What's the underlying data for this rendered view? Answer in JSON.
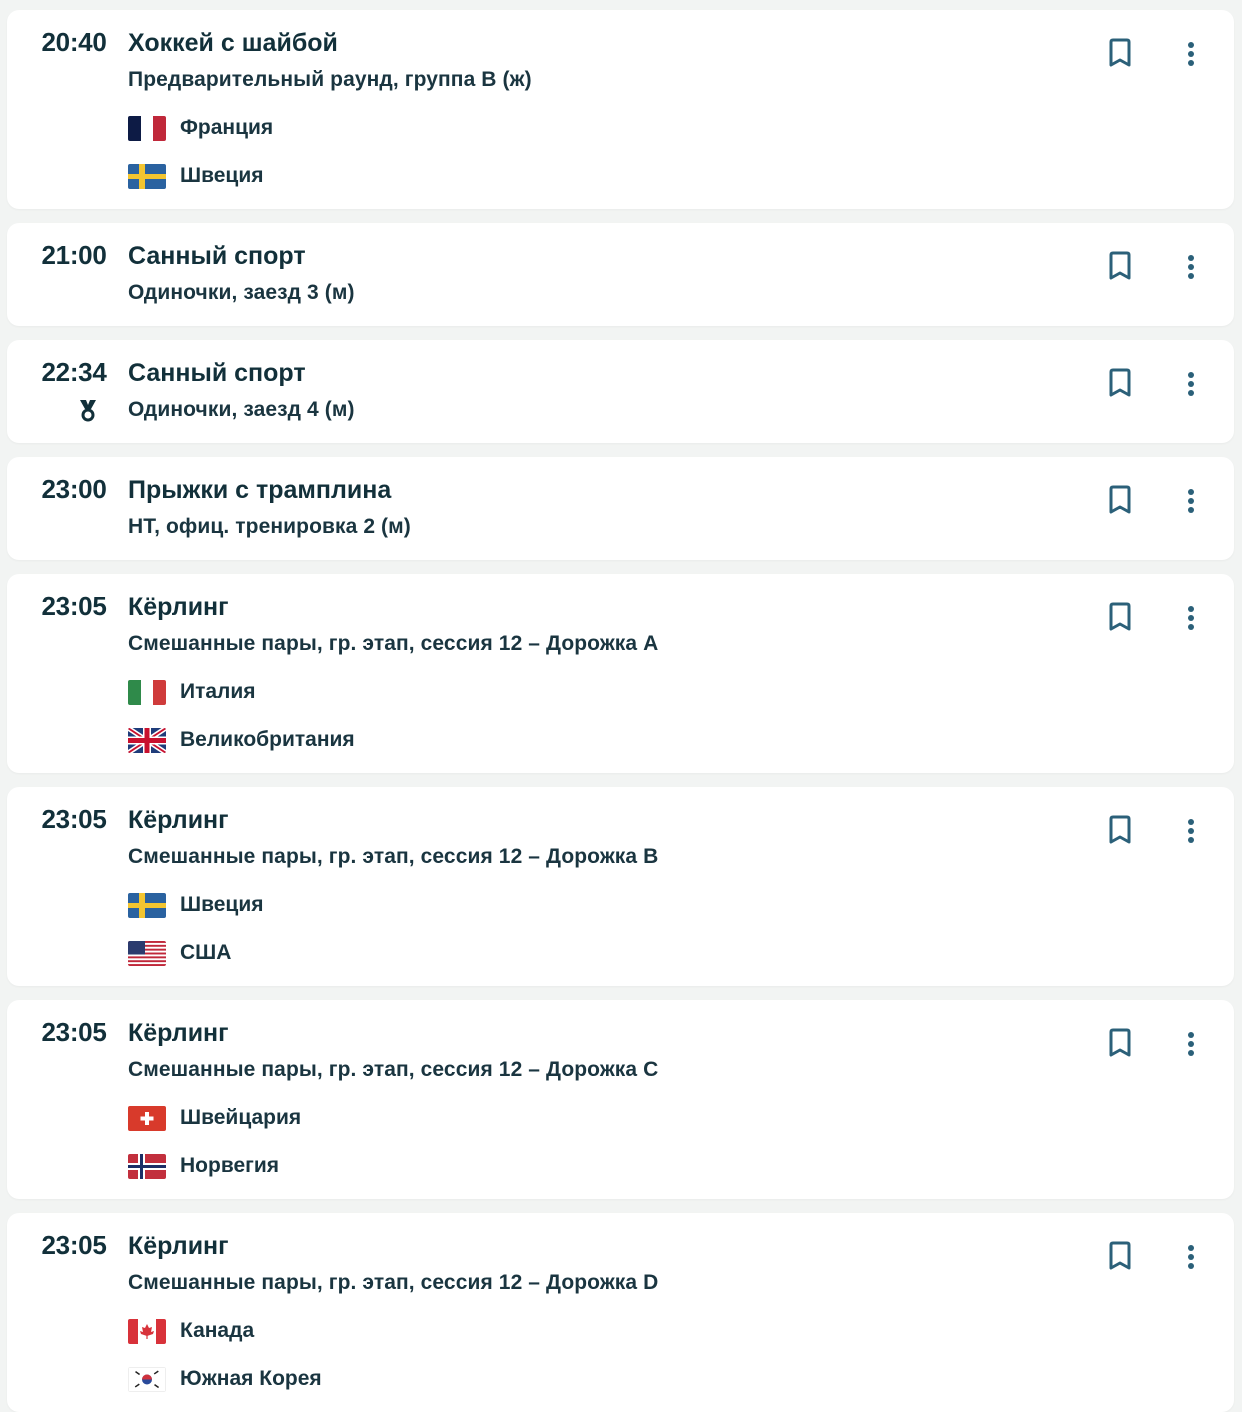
{
  "colors": {
    "text": "#12303a",
    "icon": "#2b6079",
    "background": "#f2f4f3",
    "card": "#ffffff"
  },
  "events": [
    {
      "time": "20:40",
      "title": "Хоккей с шайбой",
      "subtitle": "Предварительный раунд, группа B (ж)",
      "medal": false,
      "teams": [
        {
          "flag": "fr",
          "name": "Франция"
        },
        {
          "flag": "se",
          "name": "Швеция"
        }
      ]
    },
    {
      "time": "21:00",
      "title": "Санный спорт",
      "subtitle": "Одиночки, заезд 3 (м)",
      "medal": false,
      "teams": []
    },
    {
      "time": "22:34",
      "title": "Санный спорт",
      "subtitle": "Одиночки, заезд 4 (м)",
      "medal": true,
      "teams": []
    },
    {
      "time": "23:00",
      "title": "Прыжки с трамплина",
      "subtitle": "НТ, офиц. тренировка 2 (м)",
      "medal": false,
      "teams": []
    },
    {
      "time": "23:05",
      "title": "Кёрлинг",
      "subtitle": "Смешанные пары, гр. этап, сессия 12 – Дорожка A",
      "medal": false,
      "teams": [
        {
          "flag": "it",
          "name": "Италия"
        },
        {
          "flag": "gb",
          "name": "Великобритания"
        }
      ]
    },
    {
      "time": "23:05",
      "title": "Кёрлинг",
      "subtitle": "Смешанные пары, гр. этап, сессия 12 – Дорожка B",
      "medal": false,
      "teams": [
        {
          "flag": "se",
          "name": "Швеция"
        },
        {
          "flag": "us",
          "name": "США"
        }
      ]
    },
    {
      "time": "23:05",
      "title": "Кёрлинг",
      "subtitle": "Смешанные пары, гр. этап, сессия 12 – Дорожка C",
      "medal": false,
      "teams": [
        {
          "flag": "ch",
          "name": "Швейцария"
        },
        {
          "flag": "no",
          "name": "Норвегия"
        }
      ]
    },
    {
      "time": "23:05",
      "title": "Кёрлинг",
      "subtitle": "Смешанные пары, гр. этап, сессия 12 – Дорожка D",
      "medal": false,
      "teams": [
        {
          "flag": "ca",
          "name": "Канада"
        },
        {
          "flag": "kr",
          "name": "Южная Корея"
        }
      ]
    }
  ]
}
